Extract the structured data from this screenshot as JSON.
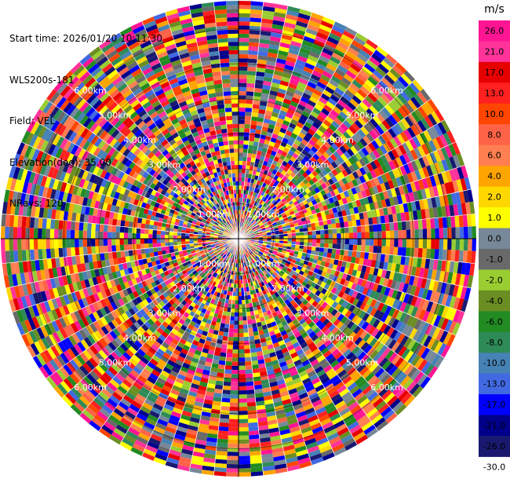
{
  "header": {
    "start_time": "Start time: 2026/01/20 10:11:30",
    "instrument": "WLS200s-181",
    "field": "Field: VEL",
    "elevation": "Elevation(deg): 35.00",
    "nrays": "NRays: 120"
  },
  "chart_data": {
    "type": "heatmap",
    "projection": "polar-ppi",
    "field": "VEL",
    "units": "m/s",
    "n_rays": 120,
    "range_rings_km": [
      1.0,
      2.0,
      3.0,
      4.0,
      5.0,
      6.0
    ],
    "ring_labels": [
      "1.00km",
      "2.00km",
      "3.00km",
      "4.00km",
      "5.00km",
      "6.00km"
    ],
    "max_range_km": 6.8,
    "grid": true,
    "colorbar": {
      "title": "m/s",
      "placement": "right",
      "tick_labels": [
        "26.0",
        "21.0",
        "17.0",
        "13.0",
        "10.0",
        "8.0",
        "6.0",
        "4.0",
        "2.0",
        "1.0",
        "0.0",
        "-1.0",
        "-2.0",
        "-4.0",
        "-6.0",
        "-8.0",
        "-10.0",
        "-13.0",
        "-17.0",
        "-21.0",
        "-26.0",
        "-30.0"
      ],
      "colors": [
        "#ff1493",
        "#ff3399",
        "#e60000",
        "#ff2020",
        "#ff4500",
        "#ff6347",
        "#ff7f50",
        "#ffa500",
        "#ffd700",
        "#ffff00",
        "#778899",
        "#696969",
        "#9acd32",
        "#6b8e23",
        "#228b22",
        "#2e8b57",
        "#4682b4",
        "#4169e1",
        "#0000ff",
        "#00008b",
        "#191970"
      ]
    }
  }
}
